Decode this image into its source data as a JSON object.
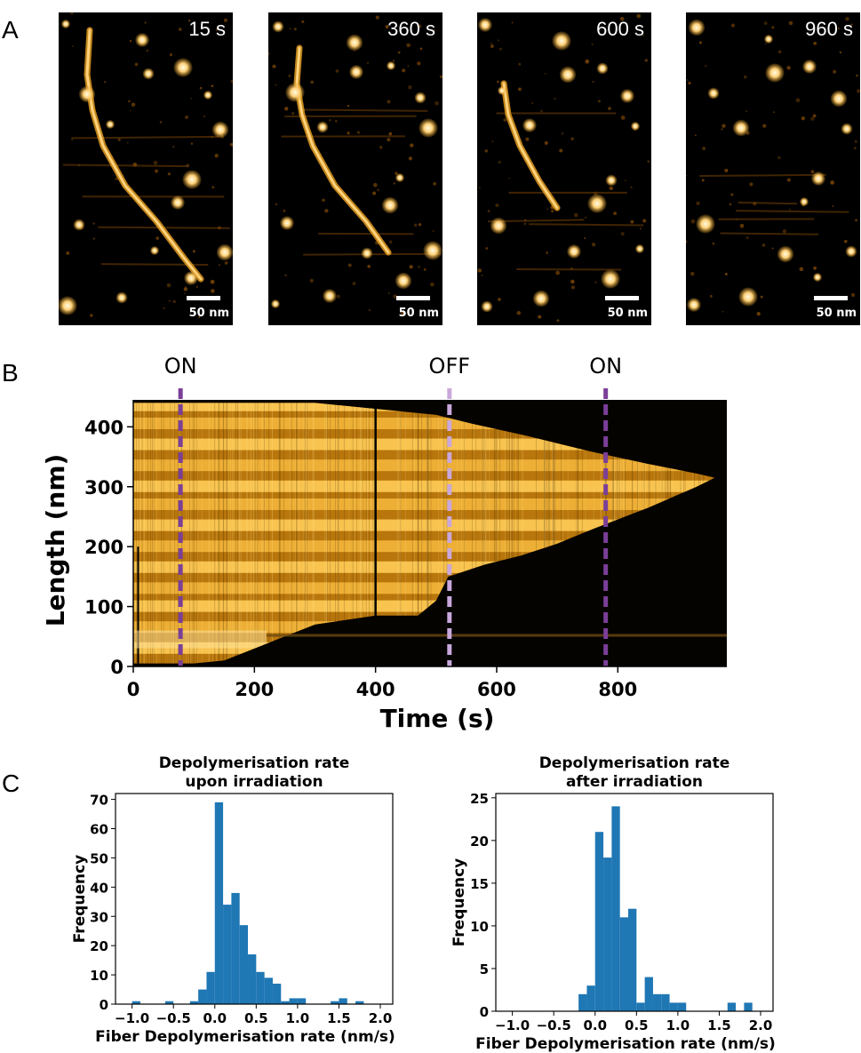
{
  "panel_labels": {
    "a": "A",
    "b": "B",
    "c": "C"
  },
  "panel_a": {
    "frames": [
      {
        "time": "15 s",
        "scale": "50 nm"
      },
      {
        "time": "360 s",
        "scale": "50 nm"
      },
      {
        "time": "600 s",
        "scale": "50 nm"
      },
      {
        "time": "960 s",
        "scale": "50 nm"
      }
    ]
  },
  "colors": {
    "afm_bright": "#ffd27a",
    "afm_mid": "#e09a1f",
    "afm_dark": "#6b3d05",
    "hist": "#1f77b4",
    "on_line": "#7b3f98",
    "off_line": "#c9a8dc"
  },
  "chart_data": [
    {
      "type": "heatmap",
      "panel": "B",
      "xlabel": "Time (s)",
      "ylabel": "Length (nm)",
      "xlim": [
        0,
        980
      ],
      "ylim": [
        0,
        445
      ],
      "xticks": [
        0,
        200,
        400,
        600,
        800
      ],
      "yticks": [
        0,
        100,
        200,
        300,
        400
      ],
      "annotations": [
        {
          "label": "ON",
          "x": 78,
          "style": "dashed",
          "color": "#7b3f98"
        },
        {
          "label": "OFF",
          "x": 522,
          "style": "dashed",
          "color": "#c9a8dc"
        },
        {
          "label": "ON",
          "x": 780,
          "style": "dashed",
          "color": "#7b3f98"
        }
      ]
    },
    {
      "type": "bar",
      "panel": "C-left",
      "title": "Depolymerisation rate\nupon irradiation",
      "title_lines": [
        "Depolymerisation rate",
        "upon irradiation"
      ],
      "xlabel": "Fiber Depolymerisation rate (nm/s)",
      "ylabel": "Frequency",
      "xlim": [
        -1.2,
        2.15
      ],
      "ylim": [
        0,
        72
      ],
      "xticks": [
        "−1.0",
        "−0.5",
        "0.0",
        "0.5",
        "1.0",
        "1.5",
        "2.0"
      ],
      "xtick_values": [
        -1.0,
        -0.5,
        0.0,
        0.5,
        1.0,
        1.5,
        2.0
      ],
      "yticks": [
        0,
        10,
        20,
        30,
        40,
        50,
        60,
        70
      ],
      "bin_edges": [
        -1.0,
        -0.9,
        -0.8,
        -0.7,
        -0.6,
        -0.5,
        -0.4,
        -0.3,
        -0.2,
        -0.1,
        0.0,
        0.1,
        0.2,
        0.3,
        0.4,
        0.5,
        0.6,
        0.7,
        0.8,
        0.9,
        1.0,
        1.1,
        1.2,
        1.3,
        1.4,
        1.5,
        1.6,
        1.7,
        1.8,
        1.9,
        2.0
      ],
      "values": [
        1,
        0,
        0,
        0,
        1,
        0,
        0,
        1,
        5,
        11,
        69,
        34,
        38,
        27,
        17,
        11,
        9,
        7,
        1,
        2,
        2,
        0,
        0,
        0,
        1,
        2,
        0,
        1,
        0,
        0
      ]
    },
    {
      "type": "bar",
      "panel": "C-right",
      "title": "Depolymerisation rate\nafter irradiation",
      "title_lines": [
        "Depolymerisation rate",
        "after irradiation"
      ],
      "xlabel": "Fiber Depolymerisation rate (nm/s)",
      "ylabel": "Frequency",
      "xlim": [
        -1.2,
        2.15
      ],
      "ylim": [
        0,
        25.5
      ],
      "xticks": [
        "−1.0",
        "−0.5",
        "0.0",
        "0.5",
        "1.0",
        "1.5",
        "2.0"
      ],
      "xtick_values": [
        -1.0,
        -0.5,
        0.0,
        0.5,
        1.0,
        1.5,
        2.0
      ],
      "yticks": [
        0,
        5,
        10,
        15,
        20,
        25
      ],
      "bin_edges": [
        -0.2,
        -0.1,
        0.0,
        0.1,
        0.2,
        0.3,
        0.4,
        0.5,
        0.6,
        0.7,
        0.8,
        0.9,
        1.0,
        1.1,
        1.2,
        1.3,
        1.4,
        1.5,
        1.6,
        1.7,
        1.8,
        1.9
      ],
      "values": [
        2,
        3,
        21,
        18,
        24,
        11,
        12,
        1,
        4,
        2,
        2,
        1,
        1,
        0,
        0,
        0,
        0,
        0,
        1,
        0,
        1
      ]
    }
  ]
}
